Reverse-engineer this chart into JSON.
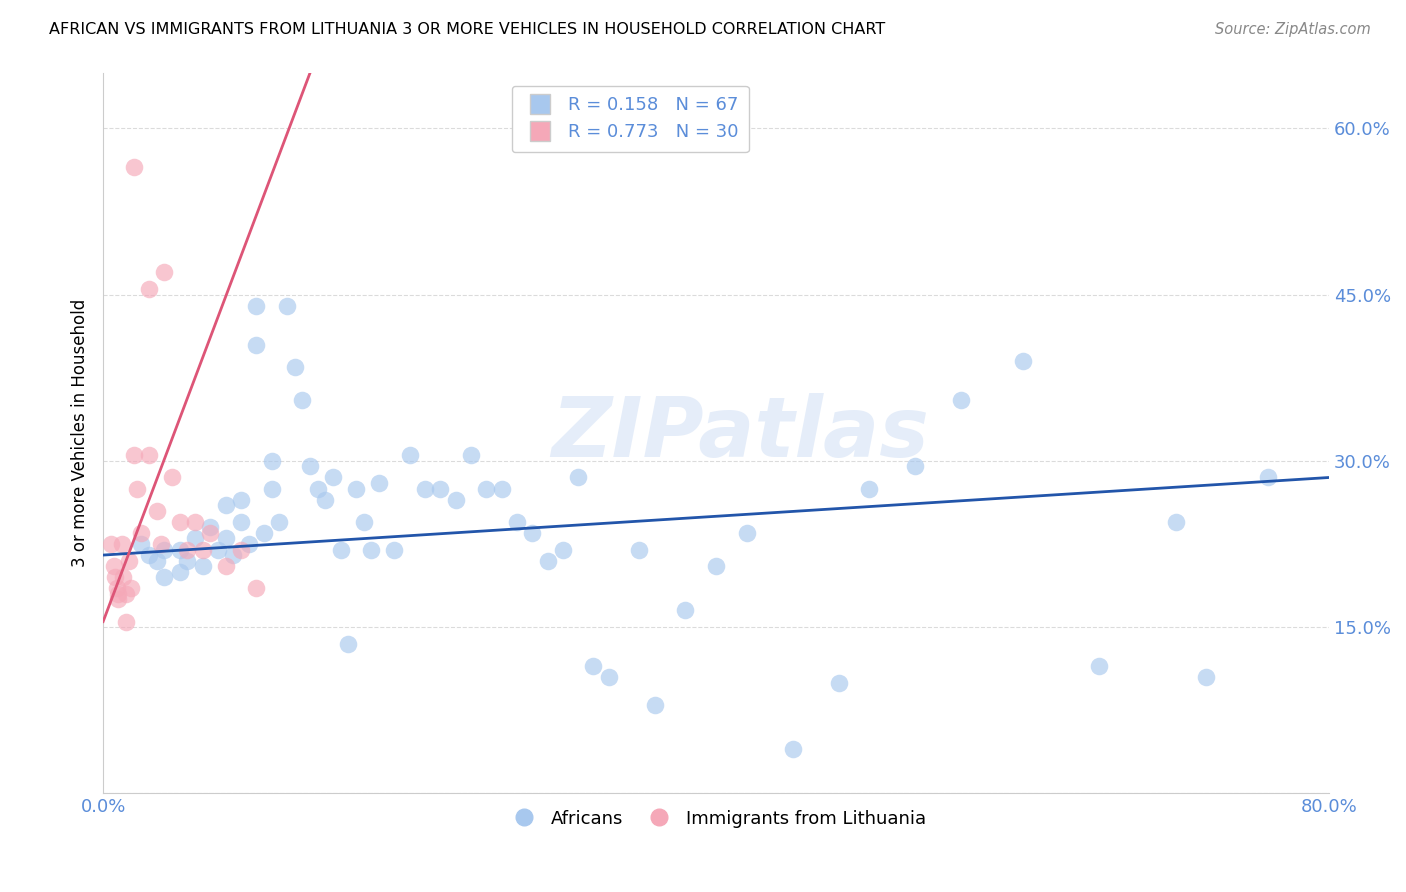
{
  "title": "AFRICAN VS IMMIGRANTS FROM LITHUANIA 3 OR MORE VEHICLES IN HOUSEHOLD CORRELATION CHART",
  "source": "Source: ZipAtlas.com",
  "ylabel": "3 or more Vehicles in Household",
  "xlim": [
    0.0,
    0.8
  ],
  "ylim": [
    0.0,
    0.65
  ],
  "yticks": [
    0.0,
    0.15,
    0.3,
    0.45,
    0.6
  ],
  "ytick_labels": [
    "",
    "15.0%",
    "30.0%",
    "45.0%",
    "60.0%"
  ],
  "xticks": [
    0.0,
    0.1,
    0.2,
    0.3,
    0.4,
    0.5,
    0.6,
    0.7,
    0.8
  ],
  "xtick_labels": [
    "0.0%",
    "",
    "",
    "",
    "",
    "",
    "",
    "",
    "80.0%"
  ],
  "legend_R1": "R = 0.158",
  "legend_N1": "N = 67",
  "legend_R2": "R = 0.773",
  "legend_N2": "N = 30",
  "color_blue": "#A8C8EE",
  "color_pink": "#F5A8B8",
  "color_line_blue": "#2255AA",
  "color_line_pink": "#DD5577",
  "color_tick_labels": "#5B8DD9",
  "watermark": "ZIPatlas",
  "blue_scatter_x": [
    0.025,
    0.03,
    0.035,
    0.04,
    0.04,
    0.05,
    0.05,
    0.055,
    0.06,
    0.065,
    0.07,
    0.075,
    0.08,
    0.08,
    0.085,
    0.09,
    0.09,
    0.095,
    0.1,
    0.1,
    0.105,
    0.11,
    0.11,
    0.115,
    0.12,
    0.125,
    0.13,
    0.135,
    0.14,
    0.145,
    0.15,
    0.155,
    0.16,
    0.165,
    0.17,
    0.175,
    0.18,
    0.19,
    0.2,
    0.21,
    0.22,
    0.23,
    0.24,
    0.25,
    0.26,
    0.27,
    0.28,
    0.29,
    0.3,
    0.31,
    0.32,
    0.33,
    0.35,
    0.36,
    0.38,
    0.4,
    0.42,
    0.45,
    0.48,
    0.5,
    0.53,
    0.56,
    0.6,
    0.65,
    0.7,
    0.72,
    0.76
  ],
  "blue_scatter_y": [
    0.225,
    0.215,
    0.21,
    0.22,
    0.195,
    0.22,
    0.2,
    0.21,
    0.23,
    0.205,
    0.24,
    0.22,
    0.26,
    0.23,
    0.215,
    0.265,
    0.245,
    0.225,
    0.44,
    0.405,
    0.235,
    0.3,
    0.275,
    0.245,
    0.44,
    0.385,
    0.355,
    0.295,
    0.275,
    0.265,
    0.285,
    0.22,
    0.135,
    0.275,
    0.245,
    0.22,
    0.28,
    0.22,
    0.305,
    0.275,
    0.275,
    0.265,
    0.305,
    0.275,
    0.275,
    0.245,
    0.235,
    0.21,
    0.22,
    0.285,
    0.115,
    0.105,
    0.22,
    0.08,
    0.165,
    0.205,
    0.235,
    0.04,
    0.1,
    0.275,
    0.295,
    0.355,
    0.39,
    0.115,
    0.245,
    0.105,
    0.285
  ],
  "pink_scatter_x": [
    0.005,
    0.007,
    0.008,
    0.009,
    0.01,
    0.01,
    0.012,
    0.013,
    0.015,
    0.015,
    0.017,
    0.018,
    0.02,
    0.02,
    0.022,
    0.025,
    0.03,
    0.03,
    0.035,
    0.038,
    0.04,
    0.045,
    0.05,
    0.055,
    0.06,
    0.065,
    0.07,
    0.08,
    0.09,
    0.1
  ],
  "pink_scatter_y": [
    0.225,
    0.205,
    0.195,
    0.185,
    0.18,
    0.175,
    0.225,
    0.195,
    0.18,
    0.155,
    0.21,
    0.185,
    0.565,
    0.305,
    0.275,
    0.235,
    0.455,
    0.305,
    0.255,
    0.225,
    0.47,
    0.285,
    0.245,
    0.22,
    0.245,
    0.22,
    0.235,
    0.205,
    0.22,
    0.185
  ],
  "blue_line_x": [
    0.0,
    0.8
  ],
  "blue_line_y": [
    0.215,
    0.285
  ],
  "pink_line_x": [
    0.0,
    0.135
  ],
  "pink_line_y": [
    0.155,
    0.65
  ]
}
